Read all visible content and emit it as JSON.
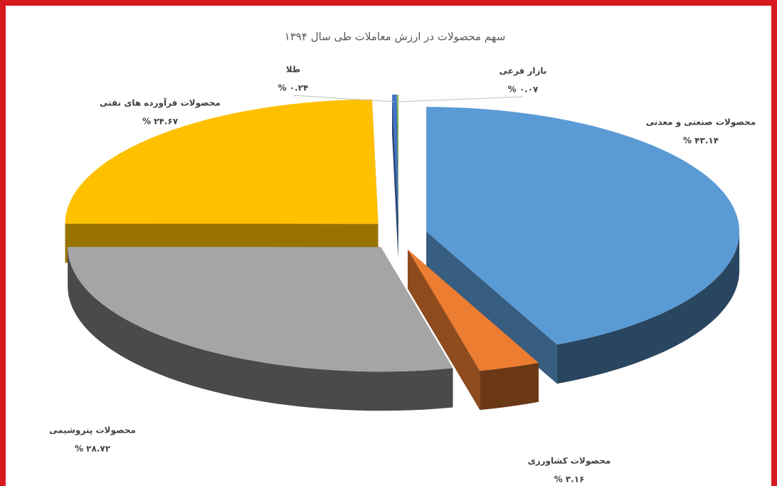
{
  "chart_data": {
    "type": "pie",
    "title": "سهم محصولات در ارزش معاملات طی سال ۱۳۹۴",
    "categories": [
      "محصولات صنعتی و معدنی",
      "محصولات کشاورزی",
      "محصولات پتروشیمی",
      "محصولات فرآورده های نفتی",
      "طلا",
      "بازار فرعی"
    ],
    "values": [
      43.14,
      3.16,
      28.72,
      24.67,
      0.24,
      0.07
    ],
    "value_labels": [
      "% ۴۳.۱۴",
      "% ۳.۱۶",
      "% ۲۸.۷۲",
      "% ۲۴.۶۷",
      "% ۰.۲۴",
      "% ۰.۰۷"
    ],
    "colors": [
      "#5b9bd5",
      "#ed7d31",
      "#a5a5a5",
      "#ffc000",
      "#4472c4",
      "#70ad47"
    ]
  }
}
